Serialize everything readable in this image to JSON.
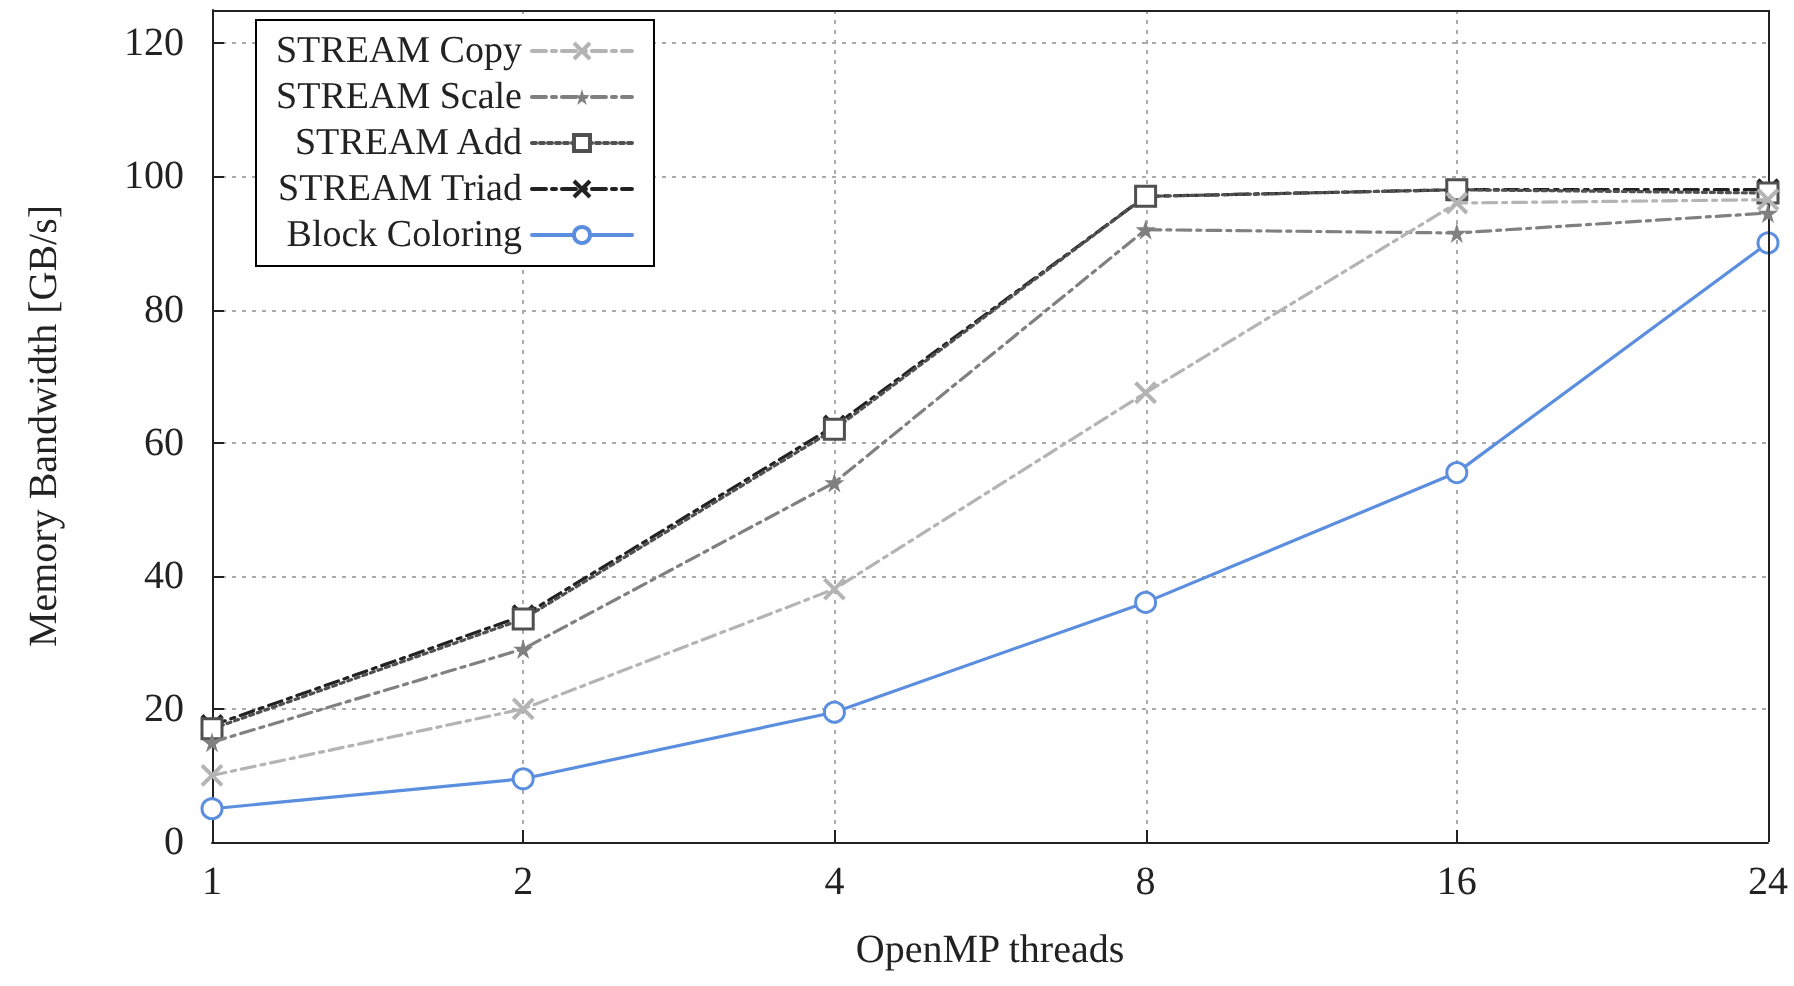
{
  "chart_data": {
    "type": "line",
    "xlabel": "OpenMP threads",
    "ylabel": "Memory Bandwidth [GB/s]",
    "categories": [
      "1",
      "2",
      "4",
      "8",
      "16",
      "24"
    ],
    "series": [
      {
        "name": "STREAM Copy",
        "color": "#b4b4b4",
        "marker": "cross",
        "line_style": "dashed",
        "values": [
          10,
          20,
          38,
          67.5,
          96,
          96.5
        ]
      },
      {
        "name": "STREAM Scale",
        "color": "#808080",
        "marker": "star",
        "line_style": "dashed",
        "values": [
          15,
          29,
          54,
          92,
          91.5,
          94.5
        ]
      },
      {
        "name": "STREAM Add",
        "color": "#505050",
        "marker": "square",
        "line_style": "dotted",
        "values": [
          17,
          33.5,
          62,
          97,
          98,
          97.5
        ]
      },
      {
        "name": "STREAM Triad",
        "color": "#222222",
        "marker": "cross",
        "line_style": "dashed",
        "values": [
          17.5,
          34,
          62.5,
          97,
          98,
          98
        ]
      },
      {
        "name": "Block Coloring",
        "color": "#5b8ede",
        "marker": "circle",
        "line_style": "solid",
        "values": [
          5,
          9.5,
          19.5,
          36,
          55.5,
          90
        ]
      }
    ],
    "ylim": [
      0,
      125
    ],
    "yticks": [
      0,
      20,
      40,
      60,
      80,
      100,
      120
    ],
    "grid": true,
    "legend": "top left"
  }
}
